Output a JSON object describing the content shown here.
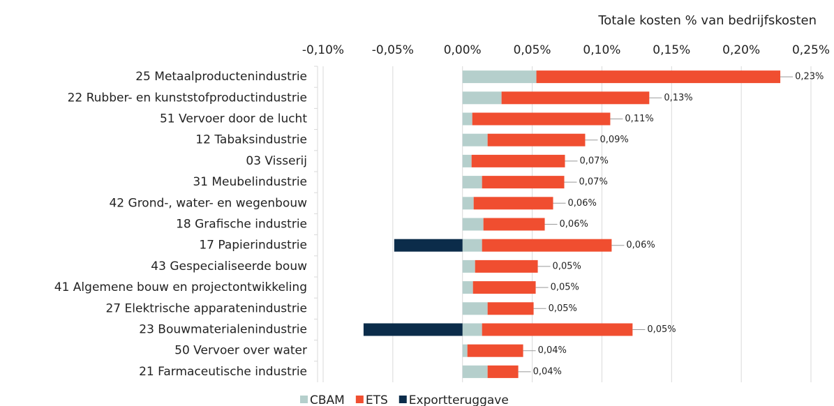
{
  "chart_data": {
    "type": "stacked-barh",
    "title": "Totale kosten % van bedrijfskosten",
    "categories": [
      "25 Metaalproductenindustrie",
      "22 Rubber- en kunststofproductindustrie",
      "51 Vervoer door de lucht",
      "12 Tabaksindustrie",
      "03 Visserij",
      "31 Meubelindustrie",
      "42 Grond-, water-  en wegenbouw",
      "18 Grafische industrie",
      "17 Papierindustrie",
      "43 Gespecialiseerde bouw",
      "41 Algemene bouw en projectontwikkeling",
      "27 Elektrische apparatenindustrie",
      "23 Bouwmaterialenindustrie",
      "50 Vervoer over water",
      "21 Farmaceutische industrie"
    ],
    "series": [
      {
        "name": "CBAM",
        "color": "#b5cfcc",
        "values": [
          0.053,
          0.028,
          0.007,
          0.018,
          0.0065,
          0.014,
          0.008,
          0.015,
          0.014,
          0.009,
          0.0075,
          0.018,
          0.014,
          0.0035,
          0.018
        ]
      },
      {
        "name": "ETS",
        "color": "#f04e30",
        "values": [
          0.175,
          0.106,
          0.099,
          0.07,
          0.067,
          0.059,
          0.057,
          0.044,
          0.093,
          0.045,
          0.045,
          0.033,
          0.108,
          0.04,
          0.022
        ]
      },
      {
        "name": "Exportteruggave",
        "color": "#0b2c4a",
        "values": [
          null,
          null,
          null,
          null,
          null,
          null,
          null,
          null,
          -0.049,
          null,
          null,
          null,
          -0.071,
          null,
          null
        ]
      }
    ],
    "totals": {
      "values": [
        0.23,
        0.13,
        0.11,
        0.09,
        0.07,
        0.07,
        0.06,
        0.06,
        0.06,
        0.05,
        0.05,
        0.05,
        0.05,
        0.04,
        0.04
      ],
      "value_labels": [
        "0,23%",
        "0,13%",
        "0,11%",
        "0,09%",
        "0,07%",
        "0,07%",
        "0,06%",
        "0,06%",
        "0,06%",
        "0,05%",
        "0,05%",
        "0,05%",
        "0,05%",
        "0,04%",
        "0,04%"
      ]
    },
    "xlim": [
      -0.1,
      0.25
    ],
    "xticks": [
      {
        "value": -0.1,
        "label": "-0,10%"
      },
      {
        "value": -0.05,
        "label": "-0,05%"
      },
      {
        "value": 0,
        "label": "0,00%"
      },
      {
        "value": 0.05,
        "label": "0,05%"
      },
      {
        "value": 0.1,
        "label": "0,10%"
      },
      {
        "value": 0.15,
        "label": "0,15%"
      },
      {
        "value": 0.2,
        "label": "0,20%"
      },
      {
        "value": 0.25,
        "label": "0,25%"
      }
    ],
    "grid": true
  }
}
